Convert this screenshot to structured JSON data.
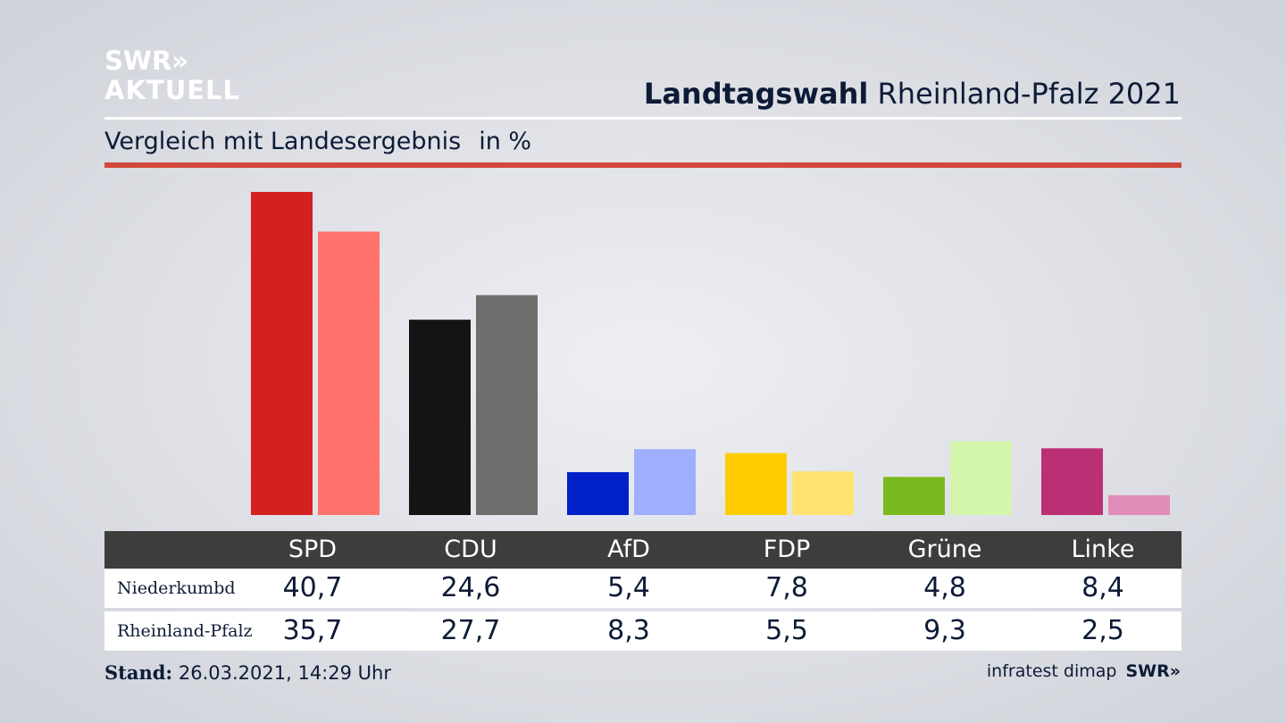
{
  "brand": {
    "line1": "SWR»",
    "line2": "AKTUELL"
  },
  "header": {
    "title_bold": "Landtagswahl",
    "title_rest": "Rheinland-Pfalz 2021"
  },
  "subtitle": {
    "text": "Vergleich mit Landesergebnis",
    "unit": "in %"
  },
  "colors": {
    "accent_rule": "#d1493c",
    "table_header": "#3d3d3d"
  },
  "chart_data": {
    "type": "bar",
    "categories": [
      "SPD",
      "CDU",
      "AfD",
      "FDP",
      "Grüne",
      "Linke"
    ],
    "series": [
      {
        "name": "Niederkumbd",
        "values": [
          40.7,
          24.6,
          5.4,
          7.8,
          4.8,
          8.4
        ],
        "colors": [
          "#d42020",
          "#141414",
          "#0020c8",
          "#ffcc00",
          "#7aba1f",
          "#bb2f75"
        ]
      },
      {
        "name": "Rheinland-Pfalz",
        "values": [
          35.7,
          27.7,
          8.3,
          5.5,
          9.3,
          2.5
        ],
        "colors": [
          "#ff736c",
          "#6f6e6c",
          "#9daffd",
          "#ffe270",
          "#d3f5ac",
          "#e18db9"
        ]
      }
    ],
    "ylim": [
      0,
      40.7
    ],
    "grid": false
  },
  "table": {
    "rows": [
      {
        "label": "Niederkumbd",
        "values": [
          "40,7",
          "24,6",
          "5,4",
          "7,8",
          "4,8",
          "8,4"
        ]
      },
      {
        "label": "Rheinland-Pfalz",
        "values": [
          "35,7",
          "27,7",
          "8,3",
          "5,5",
          "9,3",
          "2,5"
        ]
      }
    ]
  },
  "footer": {
    "stand_label": "Stand:",
    "stand_value": "26.03.2021, 14:29 Uhr",
    "source": "infratest dimap",
    "logo": "SWR»"
  }
}
